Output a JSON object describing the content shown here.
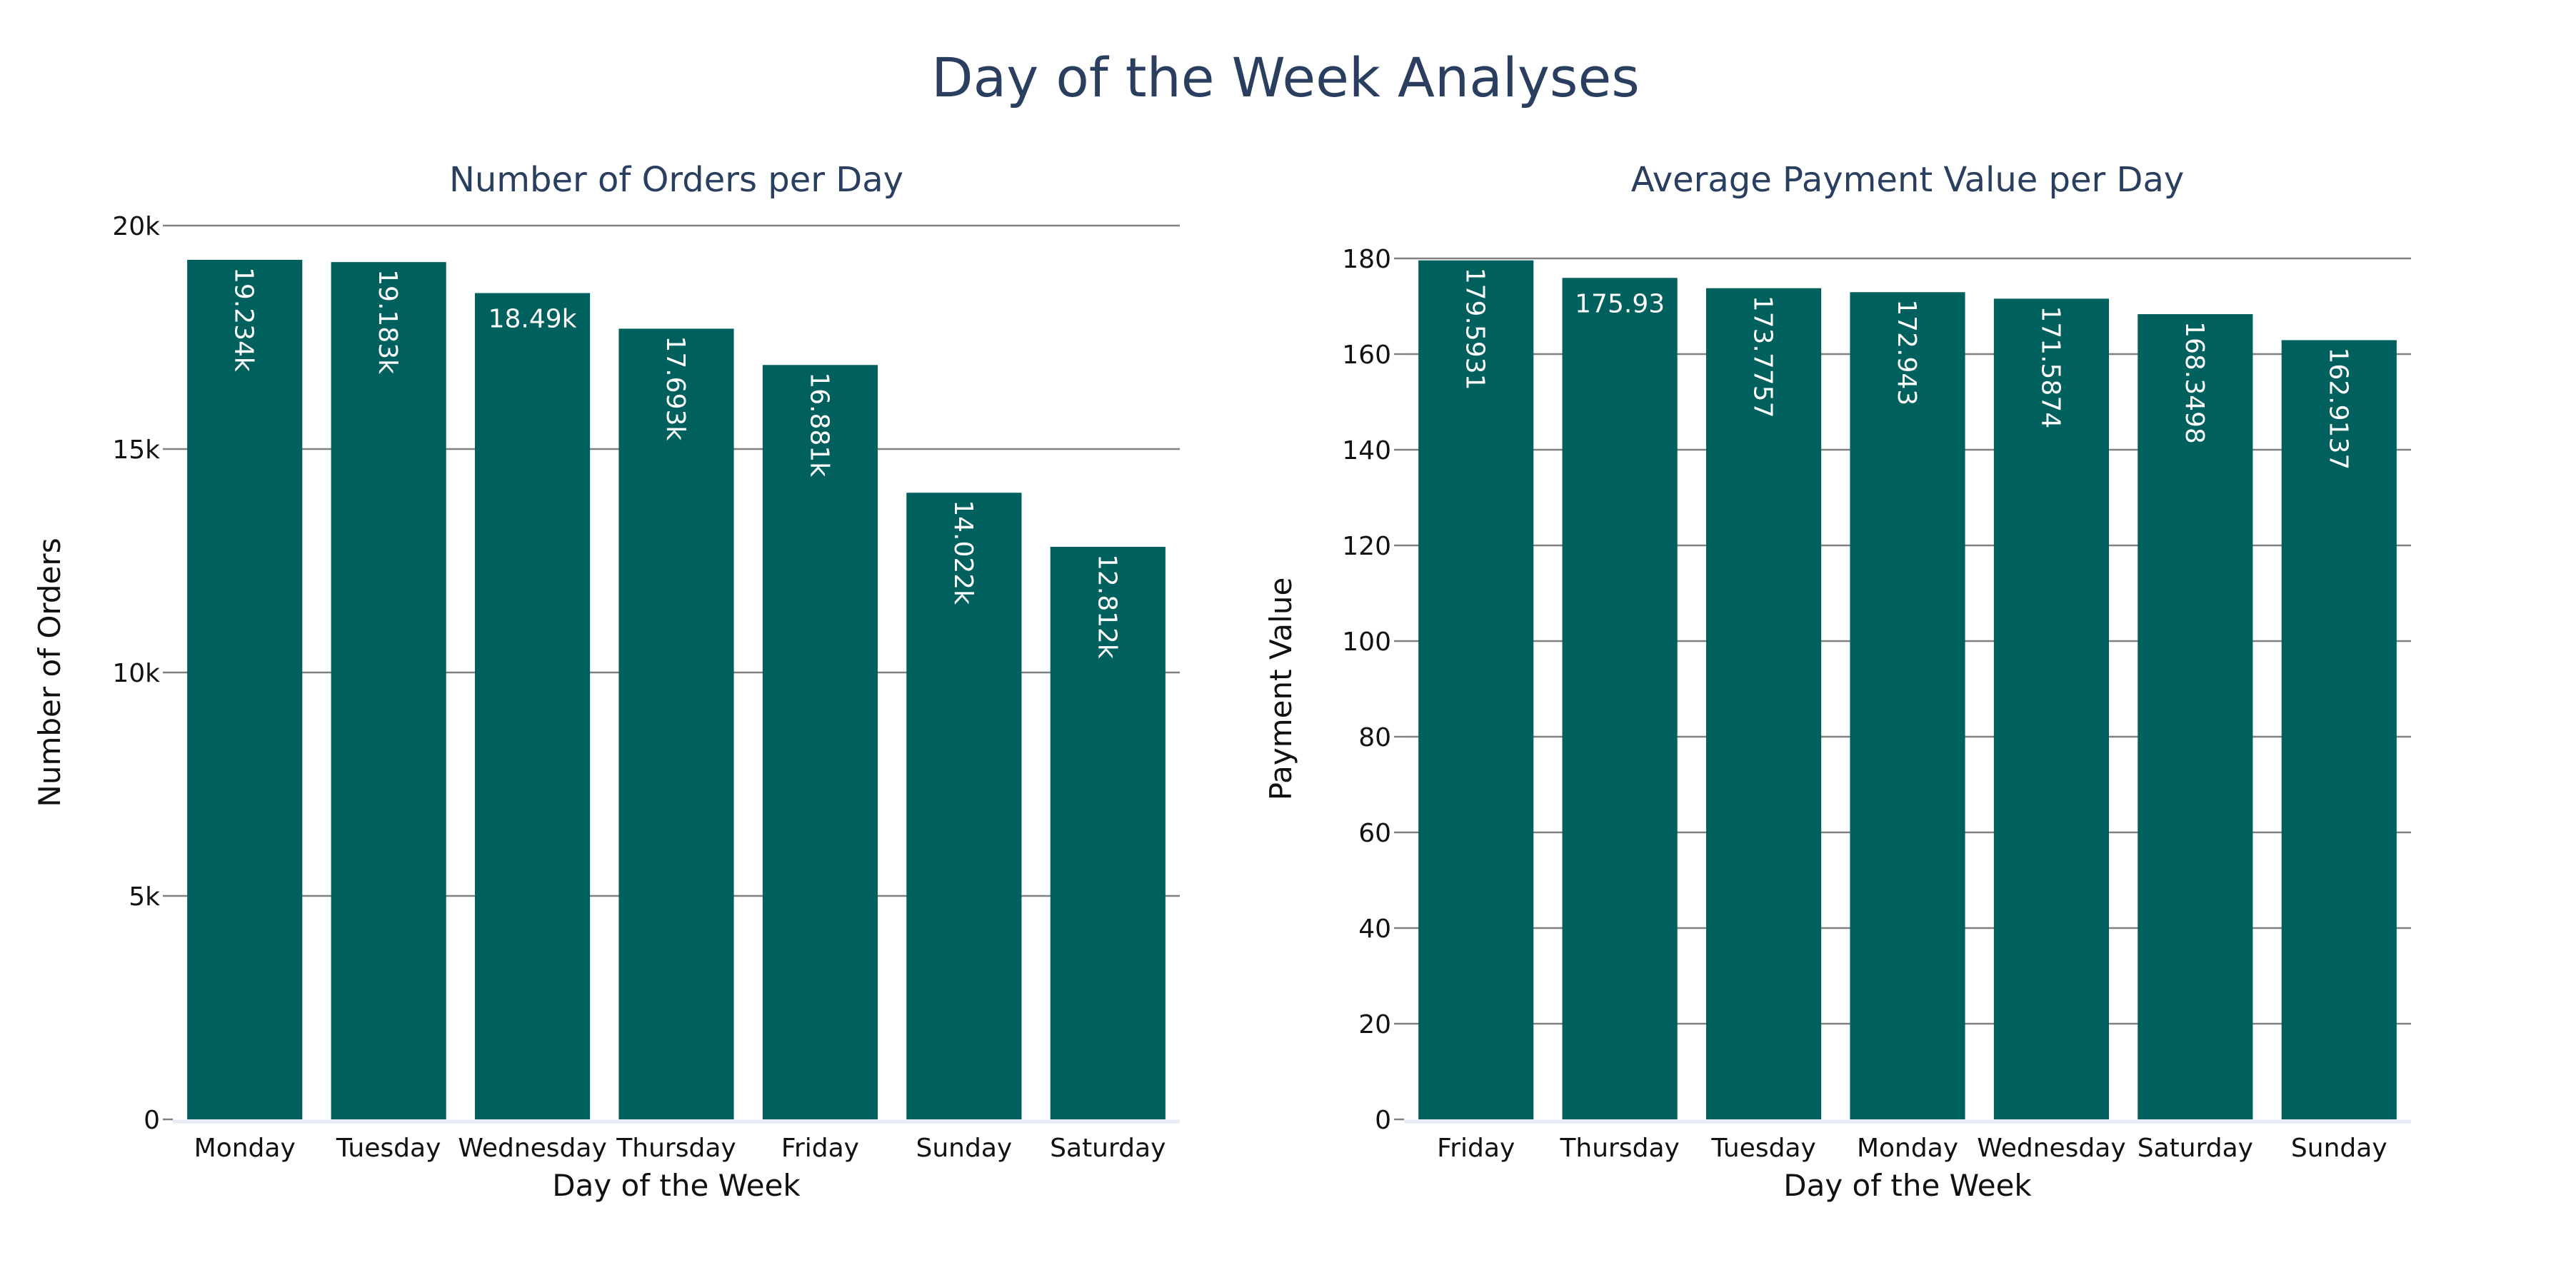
{
  "title": "Day of the Week Analyses",
  "colors": {
    "bar": "#00605e",
    "title": "#2a3f5f",
    "text": "#111111",
    "grid": "#808080",
    "label": "#ffffff"
  },
  "chart_data": [
    {
      "type": "bar",
      "title": "Number of Orders per Day",
      "xlabel": "Day of the Week",
      "ylabel": "Number of Orders",
      "categories": [
        "Monday",
        "Tuesday",
        "Wednesday",
        "Thursday",
        "Friday",
        "Sunday",
        "Saturday"
      ],
      "values": [
        19234,
        19183,
        18490,
        17693,
        16881,
        14022,
        12812
      ],
      "data_labels": [
        "19.234k",
        "19.183k",
        "18.49k",
        "17.693k",
        "16.881k",
        "14.022k",
        "12.812k"
      ],
      "ylim": [
        0,
        20000
      ],
      "yticks": [
        0,
        5000,
        10000,
        15000,
        20000
      ],
      "ytick_labels": [
        "0",
        "5k",
        "10k",
        "15k",
        "20k"
      ],
      "grid": true
    },
    {
      "type": "bar",
      "title": "Average Payment Value per Day",
      "xlabel": "Day of the Week",
      "ylabel": "Payment Value",
      "categories": [
        "Friday",
        "Thursday",
        "Tuesday",
        "Monday",
        "Wednesday",
        "Saturday",
        "Sunday"
      ],
      "values": [
        179.5931,
        175.93,
        173.7757,
        172.943,
        171.5874,
        168.3498,
        162.9137
      ],
      "data_labels": [
        "179.5931",
        "175.93",
        "173.7757",
        "172.943",
        "171.5874",
        "168.3498",
        "162.9137"
      ],
      "ylim": [
        0,
        180
      ],
      "yticks": [
        0,
        20,
        40,
        60,
        80,
        100,
        120,
        140,
        160,
        180
      ],
      "ytick_labels": [
        "0",
        "20",
        "40",
        "60",
        "80",
        "100",
        "120",
        "140",
        "160",
        "180"
      ],
      "grid": true
    }
  ]
}
